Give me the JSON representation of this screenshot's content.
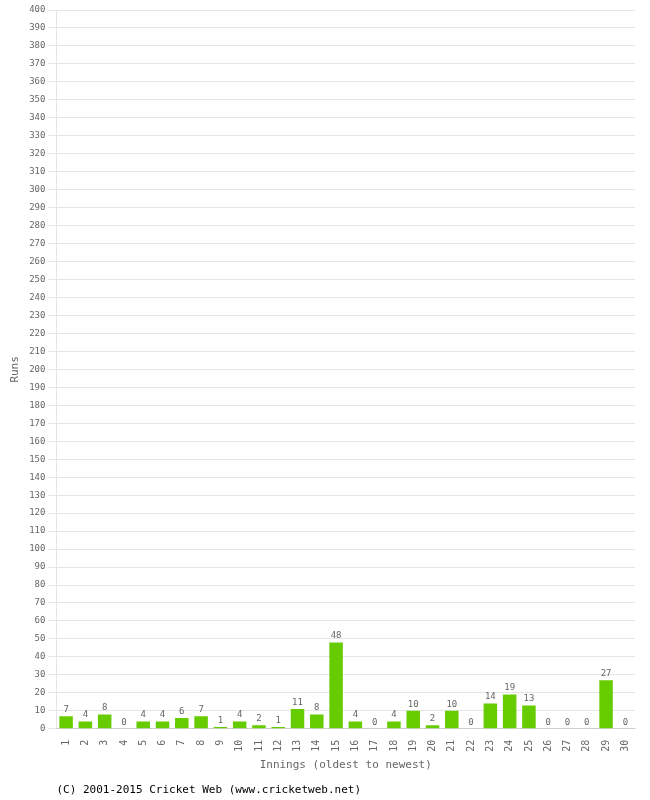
{
  "chart_data": {
    "type": "bar",
    "xlabel": "Innings (oldest to newest)",
    "ylabel": "Runs",
    "annotations": [
      "(C) 2001-2015 Cricket Web (www.cricketweb.net)"
    ],
    "categories": [
      "1",
      "2",
      "3",
      "4",
      "5",
      "6",
      "7",
      "8",
      "9",
      "10",
      "11",
      "12",
      "13",
      "14",
      "15",
      "16",
      "17",
      "18",
      "19",
      "20",
      "21",
      "22",
      "23",
      "24",
      "25",
      "26",
      "27",
      "28",
      "29",
      "30"
    ],
    "values": [
      7,
      4,
      8,
      0,
      4,
      4,
      6,
      7,
      1,
      4,
      2,
      1,
      11,
      8,
      48,
      4,
      0,
      4,
      10,
      2,
      10,
      0,
      14,
      19,
      13,
      0,
      0,
      0,
      27,
      0
    ],
    "color": "#66cc00",
    "ylim": [
      0,
      400
    ],
    "yticks": [
      0,
      10,
      20,
      30,
      40,
      50,
      60,
      70,
      80,
      90,
      100,
      110,
      120,
      130,
      140,
      150,
      160,
      170,
      180,
      190,
      200,
      210,
      220,
      230,
      240,
      250,
      260,
      270,
      280,
      290,
      300,
      310,
      320,
      330,
      340,
      350,
      360,
      370,
      380,
      390,
      400
    ],
    "grid": true,
    "data_labels": true
  }
}
